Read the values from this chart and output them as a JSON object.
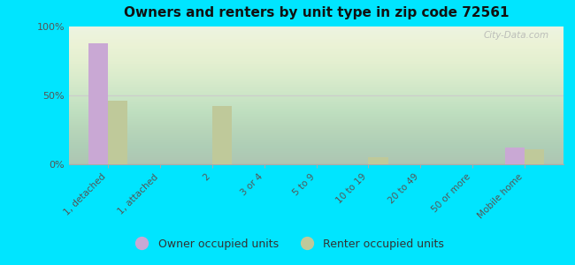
{
  "title": "Owners and renters by unit type in zip code 72561",
  "categories": [
    "1, detached",
    "1, attached",
    "2",
    "3 or 4",
    "5 to 9",
    "10 to 19",
    "20 to 49",
    "50 or more",
    "Mobile home"
  ],
  "owner_values": [
    88,
    0,
    0,
    0,
    0,
    0,
    0,
    0,
    12
  ],
  "renter_values": [
    46,
    0,
    42,
    0,
    0,
    5,
    0,
    0,
    11
  ],
  "owner_color": "#c9a8d4",
  "renter_color": "#bfc99a",
  "background_color": "#00e5ff",
  "ylim": [
    0,
    100
  ],
  "yticks": [
    0,
    50,
    100
  ],
  "ytick_labels": [
    "0%",
    "50%",
    "100%"
  ],
  "bar_width": 0.38,
  "legend_owner": "Owner occupied units",
  "legend_renter": "Renter occupied units",
  "watermark": "City-Data.com"
}
